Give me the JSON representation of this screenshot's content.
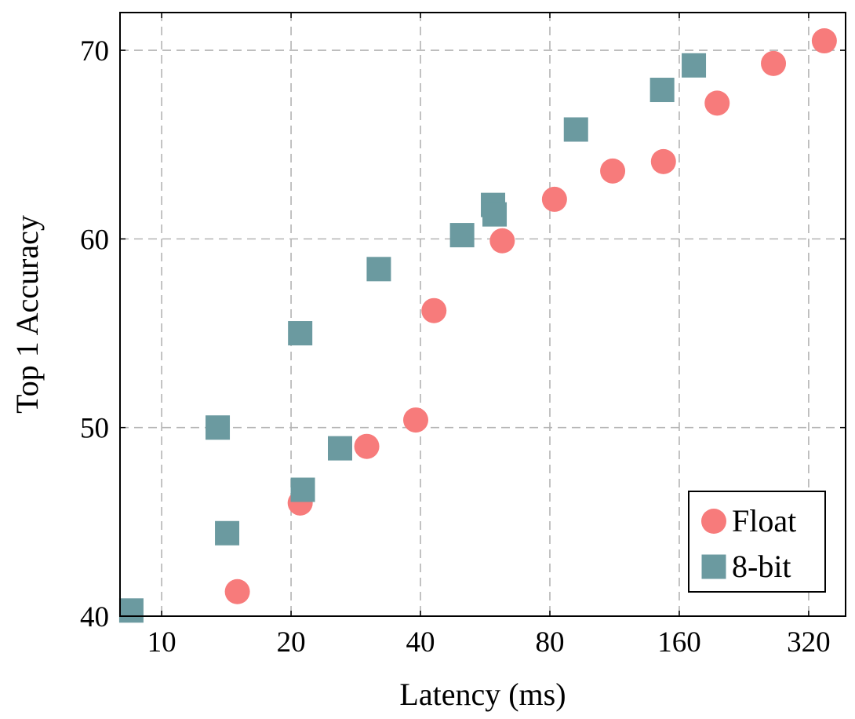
{
  "chart_data": {
    "type": "scatter",
    "title": "",
    "xlabel": "Latency (ms)",
    "ylabel": "Top 1 Accuracy",
    "xscale": "log2",
    "xlim": [
      8,
      390
    ],
    "ylim": [
      40,
      72
    ],
    "xticks": [
      10,
      20,
      40,
      80,
      160,
      320
    ],
    "xtick_labels": [
      "10",
      "20",
      "40",
      "80",
      "160",
      "320"
    ],
    "yticks": [
      40,
      50,
      60,
      70
    ],
    "ytick_labels": [
      "40",
      "50",
      "60",
      "70"
    ],
    "grid": true,
    "legend_position": "bottom-right",
    "series": [
      {
        "name": "Float",
        "marker": "circle",
        "color": "#f77b7b",
        "points": [
          {
            "x": 15.0,
            "y": 41.3
          },
          {
            "x": 21.0,
            "y": 46.0
          },
          {
            "x": 30.0,
            "y": 49.0
          },
          {
            "x": 39.0,
            "y": 50.4
          },
          {
            "x": 43.0,
            "y": 56.2
          },
          {
            "x": 62.0,
            "y": 59.9
          },
          {
            "x": 82.0,
            "y": 62.1
          },
          {
            "x": 112.0,
            "y": 63.6
          },
          {
            "x": 147.0,
            "y": 64.1
          },
          {
            "x": 196.0,
            "y": 67.2
          },
          {
            "x": 265.0,
            "y": 69.3
          },
          {
            "x": 348.0,
            "y": 70.5
          }
        ]
      },
      {
        "name": "8-bit",
        "marker": "square",
        "color": "#6b9aa0",
        "points": [
          {
            "x": 8.5,
            "y": 40.3
          },
          {
            "x": 13.5,
            "y": 50.0
          },
          {
            "x": 14.2,
            "y": 44.4
          },
          {
            "x": 21.0,
            "y": 55.0
          },
          {
            "x": 21.3,
            "y": 46.7
          },
          {
            "x": 26.0,
            "y": 48.9
          },
          {
            "x": 32.0,
            "y": 58.4
          },
          {
            "x": 50.0,
            "y": 60.2
          },
          {
            "x": 59.0,
            "y": 61.8
          },
          {
            "x": 59.5,
            "y": 61.3
          },
          {
            "x": 92.0,
            "y": 65.8
          },
          {
            "x": 146.0,
            "y": 67.9
          },
          {
            "x": 173.0,
            "y": 69.2
          }
        ]
      }
    ]
  }
}
